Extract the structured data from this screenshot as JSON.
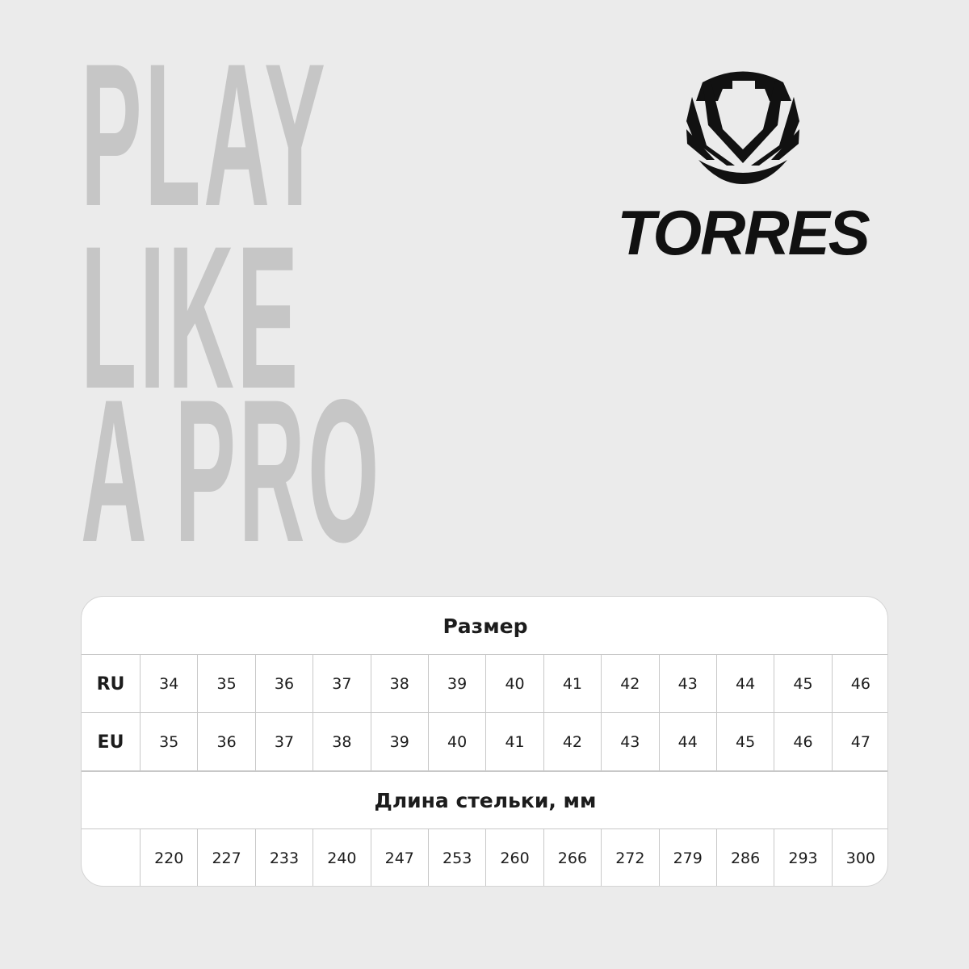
{
  "slogan": [
    "PLAY",
    "LIKE",
    "A PRO"
  ],
  "logo": {
    "brand": "TORRES",
    "icon": "helmet-shield-logo"
  },
  "table": {
    "size_title": "Размер",
    "length_title": "Длина стельки, мм",
    "rows": [
      {
        "label": "RU",
        "values": [
          "34",
          "35",
          "36",
          "37",
          "38",
          "39",
          "40",
          "41",
          "42",
          "43",
          "44",
          "45",
          "46"
        ]
      },
      {
        "label": "EU",
        "values": [
          "35",
          "36",
          "37",
          "38",
          "39",
          "40",
          "41",
          "42",
          "43",
          "44",
          "45",
          "46",
          "47"
        ]
      }
    ],
    "length_values": [
      "220",
      "227",
      "233",
      "240",
      "247",
      "253",
      "260",
      "266",
      "272",
      "279",
      "286",
      "293",
      "300"
    ]
  }
}
